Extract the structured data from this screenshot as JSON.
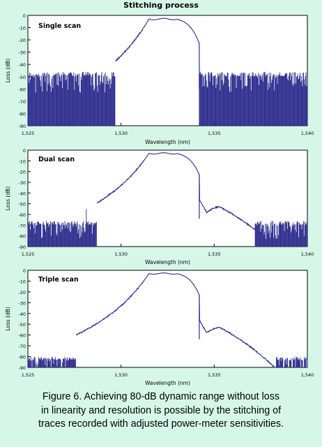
{
  "figure": {
    "title": "Stitching process",
    "caption": [
      "Figure 6. Achieving 80-dB dynamic range without loss",
      "in linearity and resolution is possible by the stitching of",
      "traces recorded with adjusted power-meter sensitivities."
    ]
  },
  "colors": {
    "trace": "#2a2a8c",
    "background": "#d6f7e8",
    "plot_area": "#ffffff"
  },
  "chart_data": [
    {
      "type": "line",
      "title": "Single scan",
      "xlabel": "Wavelength (nm)",
      "ylabel": "Loss (dB)",
      "xlim": [
        1525,
        1540
      ],
      "ylim": [
        -90,
        0
      ],
      "xticks": [
        "1,525",
        "1,530",
        "1,535",
        "1,540"
      ],
      "yticks": [
        "0",
        "-10",
        "-20",
        "-30",
        "-40",
        "-50",
        "-60",
        "-70",
        "-80",
        "-90"
      ],
      "noise_floor_db": -48,
      "passband": {
        "center_nm": 1532.3,
        "top_db": -3,
        "left_edge_nm": 1531.5,
        "right_edge_nm": 1533.0,
        "right_drop_nm": 1534.2
      },
      "noise_region_nm": [
        [
          1525,
          1529.7
        ],
        [
          1534.2,
          1540
        ]
      ],
      "side_lobe": null
    },
    {
      "type": "line",
      "title": "Dual scan",
      "xlabel": "Wavelength (nm)",
      "ylabel": "Loss (dB)",
      "xlim": [
        1525,
        1540
      ],
      "ylim": [
        -90,
        0
      ],
      "xticks": [
        "1,525",
        "1,530",
        "1,535",
        "1,540"
      ],
      "yticks": [
        "0",
        "-10",
        "-20",
        "-30",
        "-40",
        "-50",
        "-60",
        "-70",
        "-80",
        "-90"
      ],
      "noise_floor_db": -68,
      "passband": {
        "center_nm": 1532.3,
        "top_db": -3,
        "left_edge_nm": 1531.5,
        "right_edge_nm": 1533.0,
        "right_drop_nm": 1534.2
      },
      "noise_region_nm": [
        [
          1525,
          1528.7
        ],
        [
          1537.2,
          1540
        ]
      ],
      "side_lobe": {
        "peak_nm": 1535.3,
        "peak_db": -53,
        "dip_nm": 1534.6,
        "dip_db": -58
      }
    },
    {
      "type": "line",
      "title": "Triple scan",
      "xlabel": "Wavelength (nm)",
      "ylabel": "Loss (dB)",
      "xlim": [
        1525,
        1540
      ],
      "ylim": [
        -90,
        0
      ],
      "xticks": [
        "1,525",
        "1,530",
        "1,535",
        "1,540"
      ],
      "yticks": [
        "0",
        "-10",
        "-20",
        "-30",
        "-40",
        "-50",
        "-60",
        "-70",
        "-80",
        "-90"
      ],
      "noise_floor_db": -82,
      "passband": {
        "center_nm": 1532.3,
        "top_db": -3,
        "left_edge_nm": 1531.5,
        "right_edge_nm": 1533.0,
        "right_drop_nm": 1534.2
      },
      "noise_region_nm": [
        [
          1525,
          1527.6
        ],
        [
          1538.3,
          1540
        ]
      ],
      "side_lobe": {
        "peak_nm": 1535.3,
        "peak_db": -53,
        "dip_nm": 1534.6,
        "dip_db": -58
      }
    }
  ]
}
